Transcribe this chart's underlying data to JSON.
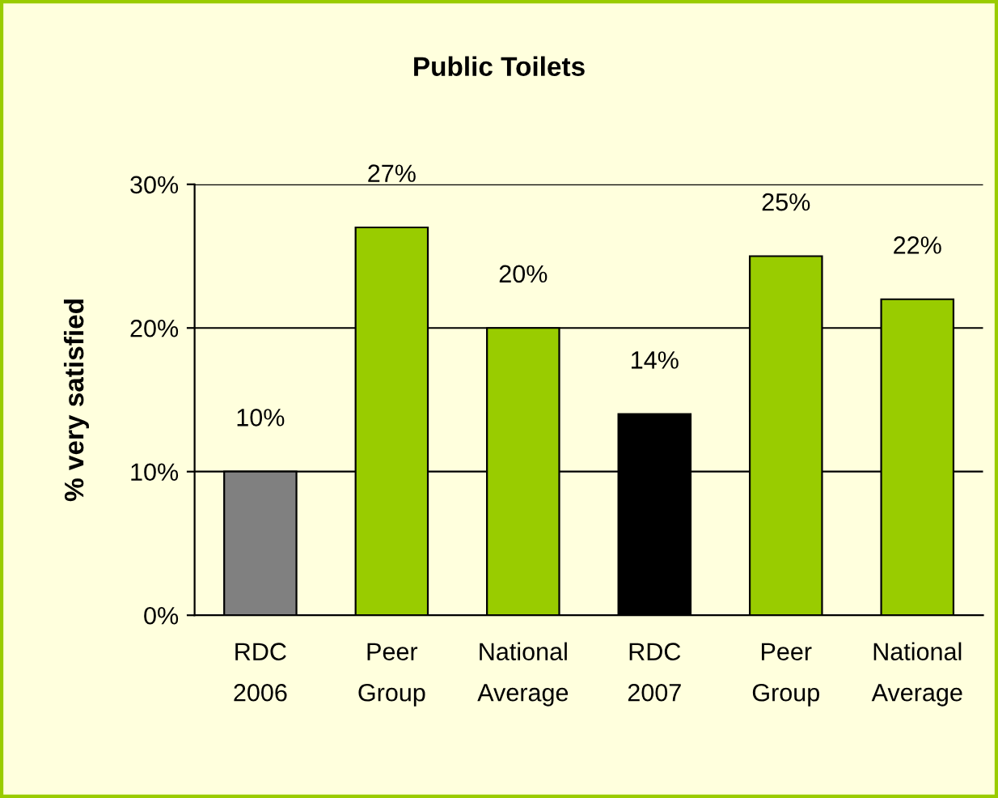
{
  "chart_data": {
    "type": "bar",
    "title": "Public Toilets",
    "ylabel": "% very satisfied",
    "categories": [
      "RDC\n2006",
      "Peer\nGroup",
      "National\nAverage",
      "RDC\n2007",
      "Peer\nGroup",
      "National\nAverage"
    ],
    "values": [
      10,
      27,
      20,
      14,
      25,
      22
    ],
    "colors": [
      "#808080",
      "#99cc00",
      "#99cc00",
      "#000000",
      "#99cc00",
      "#99cc00"
    ],
    "value_labels": [
      "10%",
      "27%",
      "20%",
      "14%",
      "25%",
      "22%"
    ],
    "ylim": [
      0,
      30
    ],
    "yticks": [
      {
        "value": 0,
        "label": "0%"
      },
      {
        "value": 10,
        "label": "10%"
      },
      {
        "value": 20,
        "label": "20%"
      },
      {
        "value": 30,
        "label": "30%"
      }
    ],
    "grid": "y",
    "legend": false
  }
}
